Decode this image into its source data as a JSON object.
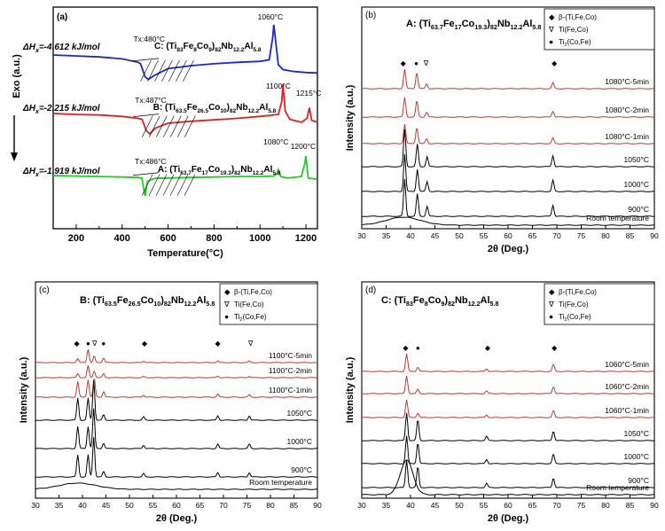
{
  "chart_data": [
    {
      "type": "line",
      "panel_label": "(a)",
      "xlabel": "Temperature(°C)",
      "ylabel": "Exo (a.u.)",
      "xlim": [
        100,
        1250
      ],
      "x_ticks": [
        "200",
        "400",
        "600",
        "800",
        "1000",
        "1200"
      ],
      "x_tick_values": [
        200,
        400,
        600,
        800,
        1000,
        1200
      ],
      "series": [
        {
          "name": "C: (Ti83Fe8Co9)82Nb12.2Al5.8",
          "color": "#1a28c8",
          "label_parts": [
            "C: (Ti",
            "83",
            "Fe",
            "8",
            "Co",
            "9",
            ")",
            "82",
            "Nb",
            "12.2",
            "Al",
            "5.8"
          ],
          "enthalpy_text": "-4.612 kJ/mol",
          "tx_text": "Tx:480°C",
          "peaks": [
            "1060°C"
          ],
          "x": [
            100,
            200,
            300,
            400,
            470,
            480,
            500,
            515,
            540,
            600,
            700,
            800,
            900,
            1000,
            1040,
            1055,
            1060,
            1068,
            1080,
            1100,
            1150,
            1200,
            1250
          ],
          "y": [
            0.0,
            0.02,
            0.04,
            0.08,
            0.15,
            0.18,
            0.45,
            0.5,
            0.42,
            0.28,
            0.22,
            0.18,
            0.15,
            0.13,
            0.1,
            -0.35,
            -0.62,
            -0.3,
            0.2,
            0.3,
            0.34,
            0.36,
            0.37
          ]
        },
        {
          "name": "B: (Ti63.5Fe26.5Co10)82Nb12.2Al5.8",
          "color": "#e02020",
          "label_parts": [
            "B: (Ti",
            "63.5",
            "Fe",
            "26.5",
            "Co",
            "10",
            ")",
            "82",
            "Nb",
            "12.2",
            "Al",
            "5.8"
          ],
          "enthalpy_text": "-2.215 kJ/mol",
          "tx_text": "Tx:487°C",
          "peaks": [
            "1100°C",
            "1215°C"
          ],
          "x": [
            100,
            200,
            300,
            400,
            470,
            487,
            505,
            520,
            545,
            600,
            700,
            800,
            900,
            1000,
            1080,
            1095,
            1100,
            1110,
            1130,
            1180,
            1205,
            1215,
            1225,
            1250
          ],
          "y": [
            0.0,
            0.02,
            0.03,
            0.06,
            0.1,
            0.12,
            0.35,
            0.42,
            0.3,
            0.2,
            0.16,
            0.13,
            0.1,
            0.06,
            0.02,
            -0.25,
            -0.6,
            -0.05,
            0.12,
            0.18,
            0.1,
            -0.12,
            0.14,
            0.18
          ]
        },
        {
          "name": "A: (Ti63.7Fe17Co19.3)82Nb12.2Al5.8",
          "color": "#22cc22",
          "label_parts": [
            "A: (Ti",
            "63.7",
            "Fe",
            "17",
            "Co",
            "19.3",
            ")",
            "82",
            "Nb",
            "12.2",
            "Al",
            "5.8"
          ],
          "enthalpy_text": "-1.919 kJ/mol",
          "tx_text": "Tx:486°C",
          "peaks": [
            "1080°C",
            "1200°C"
          ],
          "x": [
            100,
            200,
            300,
            400,
            470,
            486,
            495,
            500,
            510,
            540,
            600,
            700,
            800,
            900,
            1000,
            1060,
            1075,
            1080,
            1090,
            1120,
            1180,
            1195,
            1200,
            1210,
            1250
          ],
          "y": [
            0.0,
            0.01,
            0.02,
            0.03,
            0.04,
            0.05,
            0.3,
            0.42,
            0.12,
            0.06,
            0.05,
            0.04,
            0.03,
            0.02,
            0.02,
            0.01,
            -0.05,
            -0.12,
            0.02,
            0.05,
            0.02,
            -0.25,
            -0.4,
            0.05,
            0.08
          ]
        }
      ]
    },
    {
      "type": "line",
      "panel_label": "(b)",
      "title_parts": [
        "A: (Ti",
        "63.7",
        "Fe",
        "17",
        "Co",
        "19.3",
        ")",
        "82",
        "Nb",
        "12.2",
        "Al",
        "5.8"
      ],
      "xlabel": "2θ (Deg.)",
      "ylabel": "Intensity (a.u.)",
      "xlim": [
        30,
        90
      ],
      "x_ticks": [
        "30",
        "35",
        "40",
        "45",
        "50",
        "55",
        "60",
        "65",
        "70",
        "75",
        "80",
        "85",
        "90"
      ],
      "x_tick_values": [
        30,
        35,
        40,
        45,
        50,
        55,
        60,
        65,
        70,
        75,
        80,
        85,
        90
      ],
      "legend": [
        {
          "symbol": "◆",
          "text": "β-(Ti,Fe,Co)"
        },
        {
          "symbol": "∇",
          "text": "Ti(Fe,Co)"
        },
        {
          "symbol": "●",
          "text": "Ti2(Co,Fe)"
        }
      ],
      "markers": [
        {
          "symbol": "◆",
          "x": 38.5
        },
        {
          "symbol": "●",
          "x": 41.2
        },
        {
          "symbol": "∇",
          "x": 43.2
        },
        {
          "symbol": "◆",
          "x": 69.5
        }
      ],
      "series": [
        {
          "name": "1080°C-5min",
          "color": "#c0392b",
          "peaks": [
            [
              38.8,
              1.0
            ],
            [
              41.3,
              0.85
            ],
            [
              43.3,
              0.25
            ],
            [
              69.2,
              0.3
            ]
          ]
        },
        {
          "name": "1080°C-2min",
          "color": "#c0392b",
          "peaks": [
            [
              38.8,
              1.0
            ],
            [
              41.3,
              0.85
            ],
            [
              43.3,
              0.25
            ],
            [
              69.2,
              0.3
            ]
          ]
        },
        {
          "name": "1080°C-1min",
          "color": "#c0392b",
          "peaks": [
            [
              38.8,
              1.0
            ],
            [
              41.3,
              0.85
            ],
            [
              43.3,
              0.25
            ],
            [
              69.2,
              0.3
            ]
          ]
        },
        {
          "name": "1050°C",
          "color": "#000000",
          "peaks": [
            [
              38.8,
              1.5
            ],
            [
              41.4,
              0.9
            ],
            [
              43.4,
              0.4
            ],
            [
              69.2,
              0.45
            ]
          ]
        },
        {
          "name": "1000°C",
          "color": "#000000",
          "peaks": [
            [
              38.8,
              1.5
            ],
            [
              41.4,
              0.9
            ],
            [
              43.4,
              0.4
            ],
            [
              69.2,
              0.45
            ]
          ]
        },
        {
          "name": "900°C",
          "color": "#000000",
          "peaks": [
            [
              38.8,
              1.5
            ],
            [
              41.4,
              0.9
            ],
            [
              43.4,
              0.4
            ],
            [
              69.2,
              0.45
            ]
          ]
        },
        {
          "name": "Room temperature",
          "color": "#000000",
          "halo": [
            38.5,
            0.5,
            3.5
          ]
        }
      ]
    },
    {
      "type": "line",
      "panel_label": "(c)",
      "title_parts": [
        "B: (Ti",
        "63.5",
        "Fe",
        "26.5",
        "Co",
        "10",
        ")",
        "82",
        "Nb",
        "12.2",
        "Al",
        "5.8"
      ],
      "xlabel": "2θ (Deg.)",
      "ylabel": "Intensity (a.u.)",
      "xlim": [
        30,
        90
      ],
      "x_ticks": [
        "30",
        "35",
        "40",
        "45",
        "50",
        "55",
        "60",
        "65",
        "70",
        "75",
        "80",
        "85",
        "90"
      ],
      "x_tick_values": [
        30,
        35,
        40,
        45,
        50,
        55,
        60,
        65,
        70,
        75,
        80,
        85,
        90
      ],
      "legend": [
        {
          "symbol": "◆",
          "text": "β-(Ti,Fe,Co)"
        },
        {
          "symbol": "∇",
          "text": "Ti(Fe,Co)"
        },
        {
          "symbol": "●",
          "text": "Ti2(Co,Fe)"
        }
      ],
      "markers": [
        {
          "symbol": "◆",
          "x": 38.8
        },
        {
          "symbol": "●",
          "x": 41.2
        },
        {
          "symbol": "∇",
          "x": 42.6
        },
        {
          "symbol": "●",
          "x": 44.5
        },
        {
          "symbol": "◆",
          "x": 53.2
        },
        {
          "symbol": "◆",
          "x": 68.8
        },
        {
          "symbol": "∇",
          "x": 75.8
        }
      ],
      "series": [
        {
          "name": "1100°C-5min",
          "color": "#c0392b",
          "peaks": [
            [
              39.0,
              0.3
            ],
            [
              41.2,
              1.0
            ],
            [
              42.5,
              0.5
            ],
            [
              44.5,
              0.35
            ],
            [
              53.0,
              0.1
            ],
            [
              68.8,
              0.12
            ],
            [
              75.5,
              0.12
            ]
          ]
        },
        {
          "name": "1100°C-2min",
          "color": "#c0392b",
          "peaks": [
            [
              39.0,
              0.3
            ],
            [
              41.2,
              0.9
            ],
            [
              42.5,
              0.5
            ],
            [
              44.5,
              0.3
            ],
            [
              53.0,
              0.1
            ],
            [
              68.8,
              0.12
            ],
            [
              75.5,
              0.1
            ]
          ]
        },
        {
          "name": "1100°C-1min",
          "color": "#c0392b",
          "peaks": [
            [
              39.0,
              0.8
            ],
            [
              41.2,
              0.9
            ],
            [
              42.5,
              1.0
            ],
            [
              44.5,
              0.3
            ],
            [
              53.0,
              0.1
            ],
            [
              68.8,
              0.15
            ],
            [
              75.5,
              0.12
            ]
          ]
        },
        {
          "name": "1050°C",
          "color": "#000000",
          "peaks": [
            [
              39.0,
              1.0
            ],
            [
              41.2,
              1.0
            ],
            [
              42.4,
              1.8
            ],
            [
              44.5,
              0.25
            ],
            [
              53.0,
              0.15
            ],
            [
              68.8,
              0.2
            ],
            [
              75.5,
              0.2
            ]
          ]
        },
        {
          "name": "1000°C",
          "color": "#000000",
          "peaks": [
            [
              39.0,
              1.0
            ],
            [
              41.2,
              1.0
            ],
            [
              42.4,
              1.8
            ],
            [
              44.5,
              0.25
            ],
            [
              53.0,
              0.15
            ],
            [
              68.8,
              0.2
            ],
            [
              75.5,
              0.2
            ]
          ]
        },
        {
          "name": "900°C",
          "color": "#000000",
          "peaks": [
            [
              39.0,
              1.0
            ],
            [
              41.2,
              1.0
            ],
            [
              42.4,
              1.8
            ],
            [
              44.5,
              0.25
            ],
            [
              53.0,
              0.15
            ],
            [
              68.8,
              0.2
            ],
            [
              75.5,
              0.2
            ]
          ]
        },
        {
          "name": "Room temperature",
          "color": "#000000",
          "halo": [
            39.0,
            0.35,
            4.0
          ]
        }
      ]
    },
    {
      "type": "line",
      "panel_label": "(d)",
      "title_parts": [
        "C: (Ti",
        "83",
        "Fe",
        "8",
        "Co",
        "9",
        ")",
        "82",
        "Nb",
        "12.2",
        "Al",
        "5.8"
      ],
      "xlabel": "2θ (Deg.)",
      "ylabel": "Intensity (a.u.)",
      "xlim": [
        30,
        90
      ],
      "x_ticks": [
        "30",
        "35",
        "40",
        "45",
        "50",
        "55",
        "60",
        "65",
        "70",
        "75",
        "80",
        "85",
        "90"
      ],
      "x_tick_values": [
        30,
        35,
        40,
        45,
        50,
        55,
        60,
        65,
        70,
        75,
        80,
        85,
        90
      ],
      "legend": [
        {
          "symbol": "◆",
          "text": "β-(Ti,Fe,Co)"
        },
        {
          "symbol": "∇",
          "text": "Ti(Fe,Co)"
        },
        {
          "symbol": "●",
          "text": "Ti2(Co,Fe)"
        }
      ],
      "markers": [
        {
          "symbol": "◆",
          "x": 39.0
        },
        {
          "symbol": "●",
          "x": 41.5
        },
        {
          "symbol": "◆",
          "x": 55.8
        },
        {
          "symbol": "◆",
          "x": 69.5
        }
      ],
      "series": [
        {
          "name": "1060°C-5min",
          "color": "#c0392b",
          "peaks": [
            [
              39.2,
              1.0
            ],
            [
              41.5,
              0.25
            ],
            [
              55.6,
              0.15
            ],
            [
              69.3,
              0.4
            ]
          ]
        },
        {
          "name": "1060°C-2min",
          "color": "#c0392b",
          "peaks": [
            [
              39.2,
              1.0
            ],
            [
              41.5,
              0.25
            ],
            [
              55.6,
              0.15
            ],
            [
              69.3,
              0.4
            ]
          ]
        },
        {
          "name": "1060°C-1min",
          "color": "#c0392b",
          "peaks": [
            [
              39.2,
              1.0
            ],
            [
              41.5,
              0.25
            ],
            [
              55.6,
              0.15
            ],
            [
              69.3,
              0.4
            ]
          ]
        },
        {
          "name": "1050°C",
          "color": "#000000",
          "peaks": [
            [
              39.2,
              1.3
            ],
            [
              41.5,
              1.0
            ],
            [
              55.6,
              0.2
            ],
            [
              69.3,
              0.45
            ]
          ]
        },
        {
          "name": "1000°C",
          "color": "#000000",
          "peaks": [
            [
              39.2,
              1.3
            ],
            [
              41.5,
              1.0
            ],
            [
              55.6,
              0.2
            ],
            [
              69.3,
              0.45
            ]
          ]
        },
        {
          "name": "900°C",
          "color": "#000000",
          "peaks": [
            [
              39.2,
              1.3
            ],
            [
              41.5,
              1.0
            ],
            [
              55.6,
              0.2
            ],
            [
              69.3,
              0.45
            ]
          ]
        },
        {
          "name": "Room temperature",
          "color": "#000000",
          "halo": [
            39.2,
            1.3,
            1.3
          ]
        }
      ]
    }
  ]
}
